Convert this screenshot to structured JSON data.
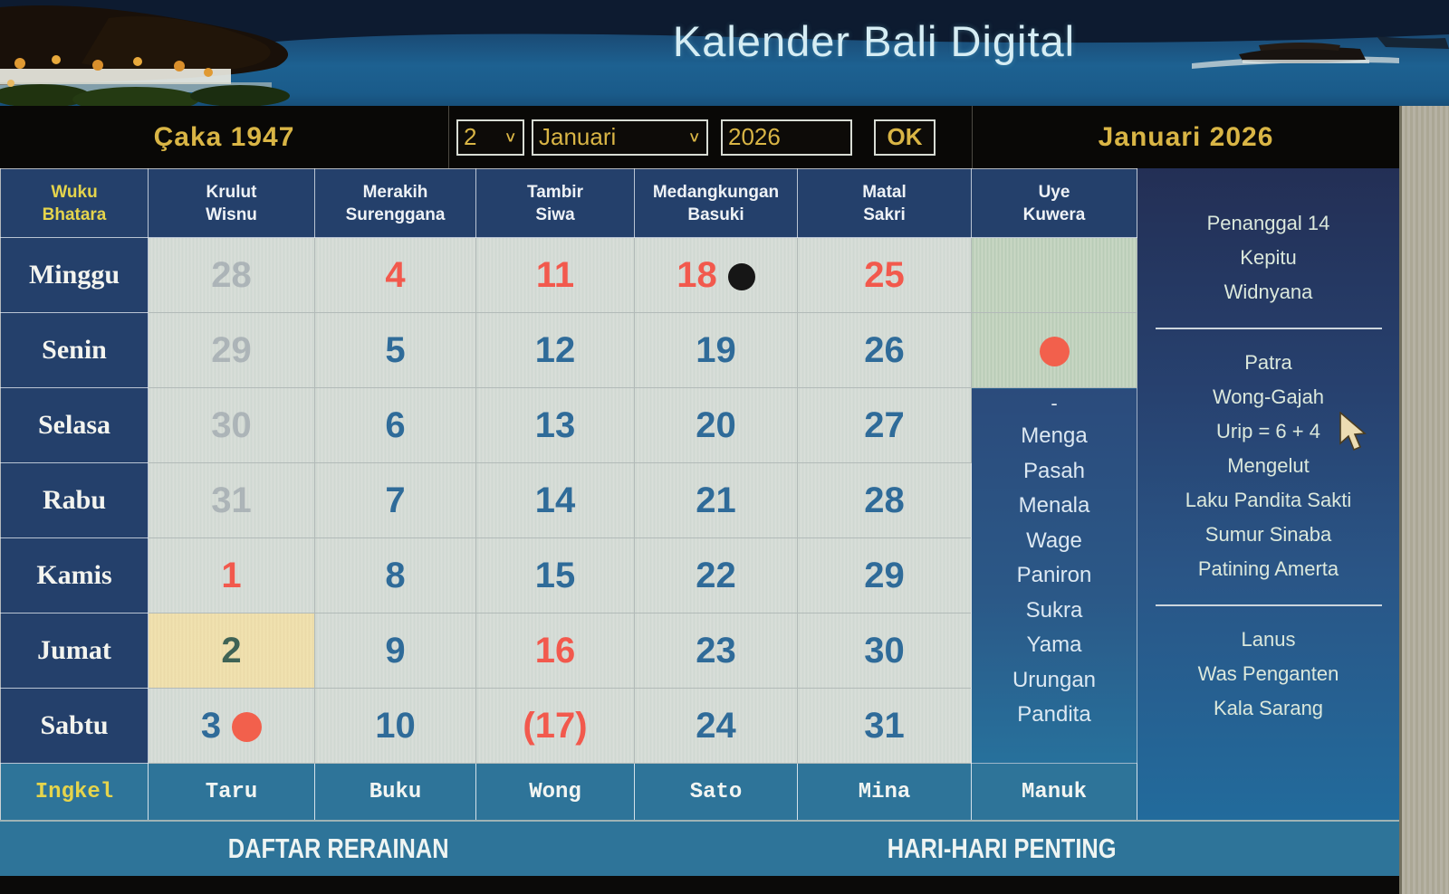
{
  "banner": {
    "title": "Kalender Bali Digital"
  },
  "controls": {
    "saka_label": "Çaka 1947",
    "day_value": "2",
    "month_value": "Januari",
    "year_value": "2026",
    "ok_label": "OK",
    "month_title": "Januari 2026"
  },
  "grid": {
    "corner": {
      "l1": "Wuku",
      "l2": "Bhatara"
    },
    "week_headers": [
      {
        "l1": "Krulut",
        "l2": "Wisnu"
      },
      {
        "l1": "Merakih",
        "l2": "Surenggana"
      },
      {
        "l1": "Tambir",
        "l2": "Siwa"
      },
      {
        "l1": "Medangkungan",
        "l2": "Basuki"
      },
      {
        "l1": "Matal",
        "l2": "Sakri"
      },
      {
        "l1": "Uye",
        "l2": "Kuwera"
      }
    ],
    "day_labels": [
      "Minggu",
      "Senin",
      "Selasa",
      "Rabu",
      "Kamis",
      "Jumat",
      "Sabtu"
    ],
    "date_rows": [
      [
        {
          "t": "28",
          "s": "faded"
        },
        {
          "t": "4",
          "s": "red"
        },
        {
          "t": "11",
          "s": "red"
        },
        {
          "t": "18",
          "s": "red",
          "moon": "new"
        },
        {
          "t": "25",
          "s": "red"
        }
      ],
      [
        {
          "t": "29",
          "s": "faded"
        },
        {
          "t": "5",
          "s": "norm"
        },
        {
          "t": "12",
          "s": "norm"
        },
        {
          "t": "19",
          "s": "norm"
        },
        {
          "t": "26",
          "s": "norm"
        }
      ],
      [
        {
          "t": "30",
          "s": "faded"
        },
        {
          "t": "6",
          "s": "norm"
        },
        {
          "t": "13",
          "s": "norm"
        },
        {
          "t": "20",
          "s": "norm"
        },
        {
          "t": "27",
          "s": "norm"
        }
      ],
      [
        {
          "t": "31",
          "s": "faded"
        },
        {
          "t": "7",
          "s": "norm"
        },
        {
          "t": "14",
          "s": "norm"
        },
        {
          "t": "21",
          "s": "norm"
        },
        {
          "t": "28",
          "s": "norm"
        }
      ],
      [
        {
          "t": "1",
          "s": "red"
        },
        {
          "t": "8",
          "s": "norm"
        },
        {
          "t": "15",
          "s": "norm"
        },
        {
          "t": "22",
          "s": "norm"
        },
        {
          "t": "29",
          "s": "norm"
        }
      ],
      [
        {
          "t": "2",
          "s": "today"
        },
        {
          "t": "9",
          "s": "norm"
        },
        {
          "t": "16",
          "s": "red"
        },
        {
          "t": "23",
          "s": "norm"
        },
        {
          "t": "30",
          "s": "norm"
        }
      ],
      [
        {
          "t": "3",
          "s": "norm",
          "moon": "full"
        },
        {
          "t": "10",
          "s": "norm"
        },
        {
          "t": "(17)",
          "s": "red"
        },
        {
          "t": "24",
          "s": "norm"
        },
        {
          "t": "31",
          "s": "norm"
        }
      ]
    ],
    "uye_cells": [
      {
        "moon": null
      },
      {
        "moon": "full"
      }
    ],
    "uye_panel": {
      "dash": "-",
      "items": [
        "Menga",
        "Pasah",
        "Menala",
        "Wage",
        "Paniron",
        "Sukra",
        "Yama",
        "Urungan",
        "Pandita"
      ]
    },
    "ingkel": {
      "label": "Ingkel",
      "values": [
        "Taru",
        "Buku",
        "Wong",
        "Sato",
        "Mina",
        "Manuk"
      ]
    }
  },
  "sidebar": {
    "sections": [
      [
        "Penanggal 14",
        "Kepitu",
        "Widnyana"
      ],
      [
        "Patra",
        "Wong-Gajah",
        "Urip = 6 + 4",
        "Mengelut",
        "Laku Pandita Sakti",
        "Sumur Sinaba",
        "Patining Amerta"
      ],
      [
        "Lanus",
        "Was Penganten",
        "Kala Sarang"
      ]
    ]
  },
  "footer": {
    "left_link": "DAFTAR RERAINAN",
    "right_link": "HARI-HARI PENTING"
  },
  "colors": {
    "gold": "#d9b545",
    "header_navy": "#24406b",
    "cell_bg": "#d9ded9",
    "cell_green": "#c9d7c4",
    "today_bg": "#f1e2b0",
    "date_blue": "#2f6b99",
    "date_red": "#f2594d",
    "teal": "#2e7499"
  }
}
